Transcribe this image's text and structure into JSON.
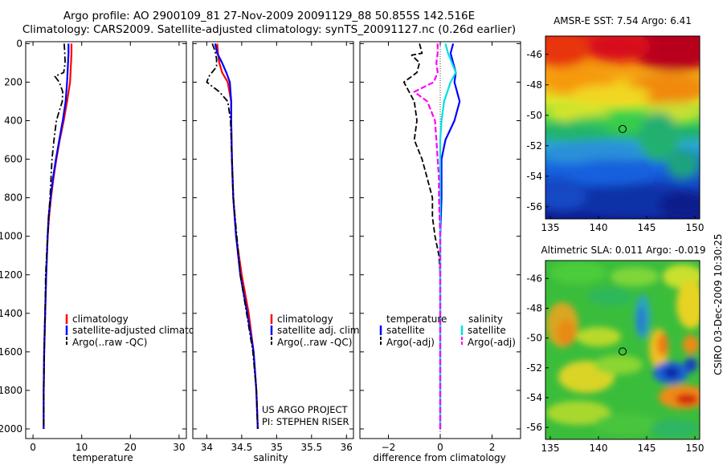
{
  "header": {
    "title_line1": "Argo profile: AO 2900109_81 27-Nov-2009 20091129_88 50.855S 142.516E",
    "title_line2": "Climatology: CARS2009. Satellite-adjusted climatology: synTS_20091127.nc (0.26d earlier)"
  },
  "side_label": "CSIRO 03-Dec-2009 10:30:25",
  "colors": {
    "red": "#ff0000",
    "blue": "#0000ff",
    "black": "#000000",
    "cyan": "#00e0e0",
    "magenta": "#ff00ff"
  },
  "chart_data": [
    {
      "id": "temperature",
      "type": "line",
      "xlabel": "temperature",
      "ylabel": "",
      "xlim": [
        -1.5,
        31.5
      ],
      "ylim": [
        2050,
        -10
      ],
      "xticks": [
        0,
        10,
        20,
        30
      ],
      "xtick_labels": [
        "0",
        "10",
        "20",
        "30"
      ],
      "yticks": [
        0,
        200,
        400,
        600,
        800,
        1000,
        1200,
        1400,
        1600,
        1800,
        2000
      ],
      "ytick_labels": [
        "0",
        "200",
        "400",
        "600",
        "800",
        "1000",
        "1200",
        "1400",
        "1600",
        "1800",
        "2000"
      ],
      "legend": [
        "climatology",
        "satellite-adjusted climatology",
        "Argo(..raw -QC)"
      ],
      "legend_position": "lower-left",
      "series": [
        {
          "name": "climatology",
          "color": "red",
          "dash": "solid",
          "depth": [
            0,
            50,
            100,
            200,
            300,
            400,
            500,
            600,
            700,
            800,
            900,
            1000,
            1200,
            1400,
            1600,
            1800,
            2000
          ],
          "values": [
            7.9,
            7.9,
            7.8,
            7.6,
            7.0,
            6.3,
            5.5,
            4.8,
            4.2,
            3.7,
            3.3,
            3.0,
            2.7,
            2.5,
            2.3,
            2.2,
            2.2
          ]
        },
        {
          "name": "satellite-adjusted climatology",
          "color": "blue",
          "dash": "solid",
          "depth": [
            0,
            50,
            100,
            200,
            300,
            400,
            500,
            600,
            700,
            800,
            900,
            1000,
            1200,
            1400,
            1600,
            1800,
            2000
          ],
          "values": [
            7.3,
            7.3,
            7.2,
            7.0,
            6.7,
            6.1,
            5.4,
            4.7,
            4.1,
            3.6,
            3.2,
            3.0,
            2.7,
            2.5,
            2.3,
            2.2,
            2.2
          ]
        },
        {
          "name": "Argo(..raw -QC)",
          "color": "black",
          "dash": "dashdot",
          "depth": [
            0,
            40,
            100,
            150,
            170,
            200,
            250,
            300,
            350,
            400,
            500,
            600,
            700,
            800,
            900,
            1000,
            1200,
            1400,
            1600,
            1800,
            2000
          ],
          "values": [
            6.4,
            6.5,
            6.6,
            6.3,
            4.5,
            5.4,
            6.1,
            6.0,
            5.4,
            4.8,
            4.3,
            3.9,
            3.7,
            3.5,
            3.2,
            3.0,
            2.6,
            2.5,
            2.3,
            2.2,
            2.2
          ]
        }
      ]
    },
    {
      "id": "salinity",
      "type": "line",
      "xlabel": "salinity",
      "ylabel": "",
      "xlim": [
        33.8,
        36.1
      ],
      "ylim": [
        2050,
        -10
      ],
      "xticks": [
        34,
        34.5,
        35,
        35.5,
        36
      ],
      "xtick_labels": [
        "34",
        "34.5",
        "35",
        "35.5",
        "36"
      ],
      "legend": [
        "climatology",
        "satellite adj. clim.",
        "Argo(..raw -QC)"
      ],
      "legend_position": "lower-right",
      "annotations": [
        "US ARGO PROJECT",
        "PI: STEPHEN RISER"
      ],
      "series": [
        {
          "name": "climatology",
          "color": "red",
          "dash": "solid",
          "depth": [
            0,
            50,
            100,
            150,
            200,
            300,
            400,
            600,
            800,
            1000,
            1200,
            1400,
            1600,
            1800,
            2000
          ],
          "values": [
            34.15,
            34.16,
            34.18,
            34.22,
            34.3,
            34.35,
            34.35,
            34.36,
            34.38,
            34.42,
            34.5,
            34.6,
            34.67,
            34.71,
            34.73
          ]
        },
        {
          "name": "satellite adj. clim.",
          "color": "blue",
          "dash": "solid",
          "depth": [
            0,
            50,
            100,
            150,
            200,
            300,
            400,
            600,
            800,
            1000,
            1200,
            1400,
            1600,
            1800,
            2000
          ],
          "values": [
            34.12,
            34.15,
            34.22,
            34.28,
            34.33,
            34.35,
            34.35,
            34.36,
            34.38,
            34.42,
            34.48,
            34.58,
            34.67,
            34.71,
            34.73
          ]
        },
        {
          "name": "Argo(..raw -QC)",
          "color": "black",
          "dash": "dashdot",
          "depth": [
            0,
            40,
            80,
            120,
            170,
            200,
            250,
            300,
            400,
            600,
            800,
            1000,
            1200,
            1400,
            1600,
            1800,
            2000
          ],
          "values": [
            34.08,
            34.12,
            34.14,
            34.14,
            34.03,
            34.0,
            34.18,
            34.3,
            34.34,
            34.36,
            34.38,
            34.43,
            34.48,
            34.57,
            34.66,
            34.71,
            34.73
          ]
        }
      ]
    },
    {
      "id": "difference",
      "type": "line",
      "xlabel": "difference from climatology",
      "ylabel": "",
      "xlim": [
        -3.1,
        3.1
      ],
      "ylim": [
        2050,
        -10
      ],
      "xticks": [
        -2,
        0,
        2
      ],
      "xtick_labels": [
        "−2",
        "0",
        "2"
      ],
      "legend_headers": [
        "temperature",
        "salinity"
      ],
      "legend_temperature": [
        "satellite",
        "Argo(-adj)"
      ],
      "legend_salinity": [
        "satellite",
        "Argo(-adj)"
      ],
      "legend_position": "lower-center",
      "series": [
        {
          "name": "temperature satellite",
          "color": "blue",
          "dash": "solid",
          "depth": [
            0,
            50,
            100,
            150,
            200,
            300,
            400,
            500,
            600,
            800,
            1000,
            1400,
            1800,
            2000
          ],
          "values": [
            0.5,
            0.4,
            0.5,
            0.6,
            0.55,
            0.75,
            0.55,
            0.2,
            0.05,
            0.05,
            0.0,
            0.0,
            0.0,
            0.0
          ]
        },
        {
          "name": "temperature Argo(-adj)",
          "color": "black",
          "dash": "dashed",
          "depth": [
            0,
            50,
            60,
            100,
            150,
            200,
            300,
            400,
            500,
            600,
            700,
            800,
            900,
            1000,
            1100,
            1200,
            1400,
            1600,
            1800,
            2000
          ],
          "values": [
            -0.8,
            -0.7,
            -1.1,
            -0.8,
            -0.9,
            -1.4,
            -1.0,
            -0.9,
            -1.0,
            -0.7,
            -0.5,
            -0.3,
            -0.3,
            -0.2,
            -0.05,
            0.0,
            0.0,
            0.0,
            0.0,
            0.0
          ]
        },
        {
          "name": "salinity satellite",
          "color": "cyan",
          "dash": "solid",
          "depth": [
            0,
            50,
            100,
            150,
            200,
            300,
            400,
            500,
            600,
            800,
            1000,
            1400,
            1800,
            2000
          ],
          "values": [
            0.2,
            0.3,
            0.45,
            0.6,
            0.4,
            0.15,
            0.05,
            0.0,
            0.0,
            0.0,
            0.0,
            0.0,
            0.0,
            0.0
          ]
        },
        {
          "name": "salinity Argo(-adj)",
          "color": "magenta",
          "dash": "dashed",
          "depth": [
            0,
            50,
            100,
            150,
            200,
            250,
            300,
            400,
            500,
            600,
            700,
            800,
            1000,
            1200,
            1400,
            1600,
            1800,
            2000
          ],
          "values": [
            -0.1,
            -0.1,
            -0.15,
            -0.1,
            -0.25,
            -1.0,
            -0.5,
            -0.2,
            -0.15,
            -0.1,
            -0.05,
            -0.05,
            0.0,
            0.0,
            0.0,
            0.0,
            0.0,
            0.0
          ]
        }
      ]
    },
    {
      "id": "sst_map",
      "type": "heatmap",
      "title": "AMSR-E SST: 7.54 Argo: 6.41",
      "xlim": [
        134.5,
        150.5
      ],
      "ylim": [
        -56.8,
        -44.8
      ],
      "xticks": [
        135,
        140,
        145,
        150
      ],
      "xtick_labels": [
        "135",
        "140",
        "145",
        "150"
      ],
      "yticks": [
        -46,
        -48,
        -50,
        -52,
        -54,
        -56
      ],
      "ytick_labels": [
        "-46",
        "-48",
        "-50",
        "-52",
        "-54",
        "-56"
      ],
      "marker": {
        "lon": 142.5,
        "lat": -50.9
      }
    },
    {
      "id": "sla_map",
      "type": "heatmap",
      "title": "Altimetric SLA: 0.011 Argo: -0.019",
      "xlim": [
        134.5,
        150.5
      ],
      "ylim": [
        -56.8,
        -44.8
      ],
      "xticks": [
        135,
        140,
        145,
        150
      ],
      "xtick_labels": [
        "135",
        "140",
        "145",
        "150"
      ],
      "yticks": [
        -46,
        -48,
        -50,
        -52,
        -54,
        -56
      ],
      "ytick_labels": [
        "-46",
        "-48",
        "-50",
        "-52",
        "-54",
        "-56"
      ],
      "marker": {
        "lon": 142.5,
        "lat": -50.9
      }
    }
  ]
}
